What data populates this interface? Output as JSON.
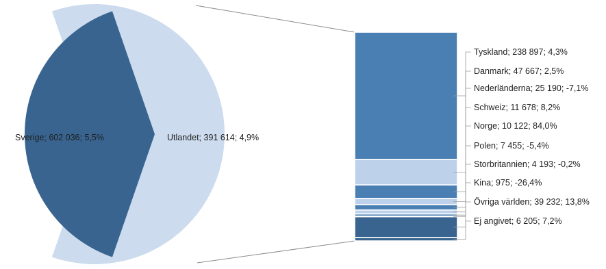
{
  "chart_data": {
    "type": "pie",
    "pie": [
      {
        "label": "Sverige; 602 036; 5,5%",
        "value": 602036,
        "color": "#cddbee"
      },
      {
        "label": "Utlandet; 391 614; 4,9%",
        "value": 391614,
        "color": "#38648f"
      }
    ],
    "breakdown": [
      {
        "label": "Tyskland; 238 897; 4,3%",
        "value": 238897,
        "color": "#4a7fb3"
      },
      {
        "label": "Danmark; 47 667; 2,5%",
        "value": 47667,
        "color": "#bdd1eb"
      },
      {
        "label": "Nederländerna; 25 190; -7,1%",
        "value": 25190,
        "color": "#4a7fb3"
      },
      {
        "label": "Schweiz; 11 678; 8,2%",
        "value": 11678,
        "color": "#bdd1eb"
      },
      {
        "label": "Norge; 10 122; 84,0%",
        "value": 10122,
        "color": "#4a7fb3"
      },
      {
        "label": "Polen; 7 455; -5,4%",
        "value": 7455,
        "color": "#bdd1eb"
      },
      {
        "label": "Storbritannien; 4 193; -0,2%",
        "value": 4193,
        "color": "#4a7fb3"
      },
      {
        "label": "Kina; 975; -26,4%",
        "value": 975,
        "color": "#bdd1eb"
      },
      {
        "label": "Övriga världen; 39 232; 13,8%",
        "value": 39232,
        "color": "#38648f"
      },
      {
        "label": "Ej angivet; 6 205; 7,2%",
        "value": 6205,
        "color": "#38648f"
      }
    ]
  }
}
